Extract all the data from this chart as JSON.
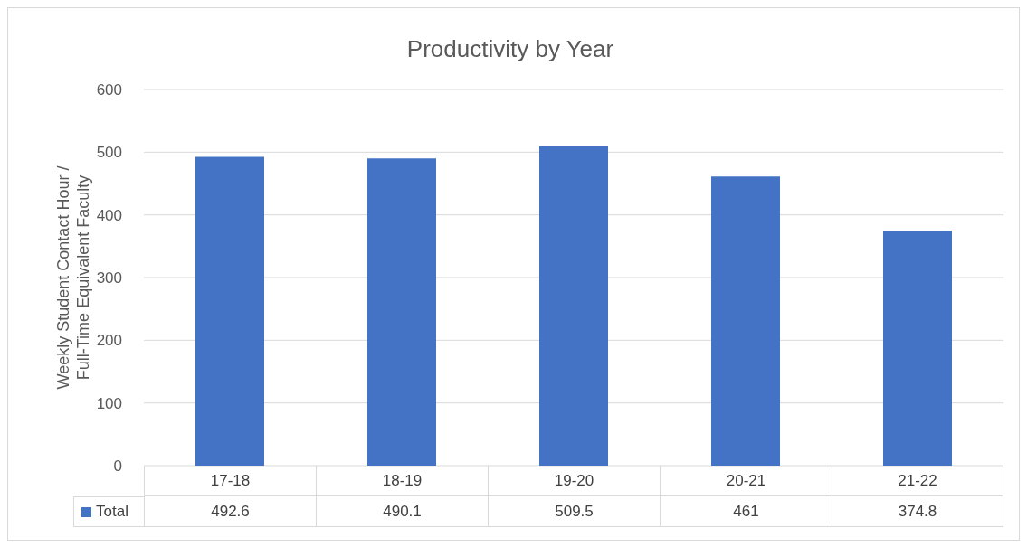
{
  "chart_data": {
    "type": "bar",
    "title": "Productivity by Year",
    "ylabel": "Weekly Student Contact Hour / Full-Time Equivalent Faculty",
    "categories": [
      "17-18",
      "18-19",
      "19-20",
      "20-21",
      "21-22"
    ],
    "series": [
      {
        "name": "Total",
        "color": "#4472c4",
        "values": [
          492.6,
          490.1,
          509.5,
          461,
          374.8
        ]
      }
    ],
    "ylim": [
      0,
      600
    ],
    "yticks": [
      0,
      100,
      200,
      300,
      400,
      500,
      600
    ],
    "grid": "y",
    "legend": "bottom",
    "data_labels": true
  }
}
